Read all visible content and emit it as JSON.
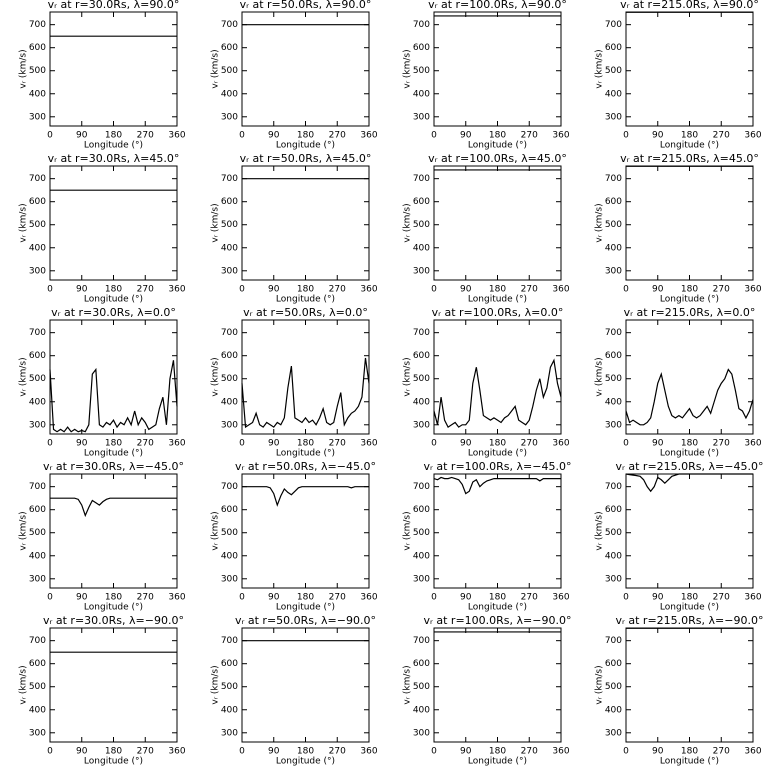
{
  "chart_data": [
    {
      "type": "line",
      "title": "vᵣ at r=30.0Rs, λ=90.0°",
      "xlabel": "Longitude (°)",
      "ylabel": "vᵣ (km/s)",
      "x": [
        0,
        360
      ],
      "values": [
        650,
        650
      ],
      "color": "#000000",
      "xlim": [
        0,
        360
      ],
      "xticks": [
        0,
        90,
        180,
        270,
        360
      ],
      "ylim": [
        260,
        755
      ],
      "yticks": [
        300,
        400,
        500,
        600,
        700
      ]
    },
    {
      "type": "line",
      "title": "vᵣ at r=50.0Rs, λ=90.0°",
      "xlabel": "Longitude (°)",
      "ylabel": "vᵣ (km/s)",
      "x": [
        0,
        360
      ],
      "values": [
        700,
        700
      ],
      "color": "#000000",
      "xlim": [
        0,
        360
      ],
      "xticks": [
        0,
        90,
        180,
        270,
        360
      ],
      "ylim": [
        260,
        755
      ],
      "yticks": [
        300,
        400,
        500,
        600,
        700
      ]
    },
    {
      "type": "line",
      "title": "vᵣ at r=100.0Rs, λ=90.0°",
      "xlabel": "Longitude (°)",
      "ylabel": "vᵣ (km/s)",
      "x": [
        0,
        360
      ],
      "values": [
        738,
        738
      ],
      "color": "#000000",
      "xlim": [
        0,
        360
      ],
      "xticks": [
        0,
        90,
        180,
        270,
        360
      ],
      "ylim": [
        260,
        755
      ],
      "yticks": [
        300,
        400,
        500,
        600,
        700
      ]
    },
    {
      "type": "line",
      "title": "vᵣ at r=215.0Rs, λ=90.0°",
      "xlabel": "Longitude (°)",
      "ylabel": "vᵣ (km/s)",
      "x": [
        0,
        360
      ],
      "values": [
        754,
        754
      ],
      "color": "#000000",
      "xlim": [
        0,
        360
      ],
      "xticks": [
        0,
        90,
        180,
        270,
        360
      ],
      "ylim": [
        260,
        755
      ],
      "yticks": [
        300,
        400,
        500,
        600,
        700
      ]
    },
    {
      "type": "line",
      "title": "vᵣ at r=30.0Rs, λ=45.0°",
      "xlabel": "Longitude (°)",
      "ylabel": "vᵣ (km/s)",
      "x": [
        0,
        360
      ],
      "values": [
        650,
        650
      ],
      "color": "#000000",
      "xlim": [
        0,
        360
      ],
      "xticks": [
        0,
        90,
        180,
        270,
        360
      ],
      "ylim": [
        260,
        755
      ],
      "yticks": [
        300,
        400,
        500,
        600,
        700
      ]
    },
    {
      "type": "line",
      "title": "vᵣ at r=50.0Rs, λ=45.0°",
      "xlabel": "Longitude (°)",
      "ylabel": "vᵣ (km/s)",
      "x": [
        0,
        360
      ],
      "values": [
        700,
        700
      ],
      "color": "#000000",
      "xlim": [
        0,
        360
      ],
      "xticks": [
        0,
        90,
        180,
        270,
        360
      ],
      "ylim": [
        260,
        755
      ],
      "yticks": [
        300,
        400,
        500,
        600,
        700
      ]
    },
    {
      "type": "line",
      "title": "vᵣ at r=100.0Rs, λ=45.0°",
      "xlabel": "Longitude (°)",
      "ylabel": "vᵣ (km/s)",
      "x": [
        0,
        360
      ],
      "values": [
        738,
        738
      ],
      "color": "#000000",
      "xlim": [
        0,
        360
      ],
      "xticks": [
        0,
        90,
        180,
        270,
        360
      ],
      "ylim": [
        260,
        755
      ],
      "yticks": [
        300,
        400,
        500,
        600,
        700
      ]
    },
    {
      "type": "line",
      "title": "vᵣ at r=215.0Rs, λ=45.0°",
      "xlabel": "Longitude (°)",
      "ylabel": "vᵣ (km/s)",
      "x": [
        0,
        360
      ],
      "values": [
        754,
        754
      ],
      "color": "#000000",
      "xlim": [
        0,
        360
      ],
      "xticks": [
        0,
        90,
        180,
        270,
        360
      ],
      "ylim": [
        260,
        755
      ],
      "yticks": [
        300,
        400,
        500,
        600,
        700
      ]
    },
    {
      "type": "line",
      "title": "vᵣ at r=30.0Rs, λ=0.0°",
      "xlabel": "Longitude (°)",
      "ylabel": "vᵣ (km/s)",
      "x": [
        0,
        10,
        20,
        30,
        40,
        50,
        60,
        70,
        80,
        90,
        100,
        110,
        120,
        130,
        140,
        150,
        160,
        170,
        180,
        190,
        200,
        210,
        220,
        230,
        240,
        250,
        260,
        270,
        280,
        290,
        300,
        310,
        320,
        330,
        340,
        350,
        360
      ],
      "values": [
        540,
        280,
        270,
        280,
        270,
        290,
        270,
        280,
        270,
        275,
        270,
        300,
        520,
        540,
        300,
        290,
        310,
        300,
        320,
        290,
        310,
        300,
        330,
        300,
        360,
        300,
        330,
        310,
        280,
        290,
        300,
        370,
        420,
        300,
        500,
        580,
        380
      ],
      "color": "#000000",
      "xlim": [
        0,
        360
      ],
      "xticks": [
        0,
        90,
        180,
        270,
        360
      ],
      "ylim": [
        260,
        755
      ],
      "yticks": [
        300,
        400,
        500,
        600,
        700
      ]
    },
    {
      "type": "line",
      "title": "vᵣ at r=50.0Rs, λ=0.0°",
      "xlabel": "Longitude (°)",
      "ylabel": "vᵣ (km/s)",
      "x": [
        0,
        10,
        20,
        30,
        40,
        50,
        60,
        70,
        80,
        90,
        100,
        110,
        120,
        130,
        140,
        150,
        160,
        170,
        180,
        190,
        200,
        210,
        220,
        230,
        240,
        250,
        260,
        270,
        280,
        290,
        300,
        310,
        320,
        330,
        340,
        350,
        360
      ],
      "values": [
        480,
        290,
        300,
        310,
        350,
        300,
        290,
        310,
        300,
        290,
        310,
        300,
        330,
        460,
        555,
        330,
        320,
        310,
        330,
        310,
        320,
        300,
        330,
        370,
        310,
        300,
        310,
        380,
        440,
        300,
        330,
        350,
        360,
        380,
        420,
        590,
        480
      ],
      "color": "#000000",
      "xlim": [
        0,
        360
      ],
      "xticks": [
        0,
        90,
        180,
        270,
        360
      ],
      "ylim": [
        260,
        755
      ],
      "yticks": [
        300,
        400,
        500,
        600,
        700
      ]
    },
    {
      "type": "line",
      "title": "vᵣ at r=100.0Rs, λ=0.0°",
      "xlabel": "Longitude (°)",
      "ylabel": "vᵣ (km/s)",
      "x": [
        0,
        10,
        20,
        30,
        40,
        50,
        60,
        70,
        80,
        90,
        100,
        110,
        120,
        130,
        140,
        150,
        160,
        170,
        180,
        190,
        200,
        210,
        220,
        230,
        240,
        250,
        260,
        270,
        280,
        290,
        300,
        310,
        320,
        330,
        340,
        350,
        360
      ],
      "values": [
        360,
        300,
        420,
        320,
        290,
        300,
        310,
        290,
        300,
        300,
        320,
        480,
        550,
        450,
        340,
        330,
        320,
        330,
        320,
        310,
        330,
        340,
        360,
        380,
        320,
        310,
        300,
        320,
        380,
        450,
        500,
        420,
        460,
        550,
        580,
        480,
        420
      ],
      "color": "#000000",
      "xlim": [
        0,
        360
      ],
      "xticks": [
        0,
        90,
        180,
        270,
        360
      ],
      "ylim": [
        260,
        755
      ],
      "yticks": [
        300,
        400,
        500,
        600,
        700
      ]
    },
    {
      "type": "line",
      "title": "vᵣ at r=215.0Rs, λ=0.0°",
      "xlabel": "Longitude (°)",
      "ylabel": "vᵣ (km/s)",
      "x": [
        0,
        10,
        20,
        30,
        40,
        50,
        60,
        70,
        80,
        90,
        100,
        110,
        120,
        130,
        140,
        150,
        160,
        170,
        180,
        190,
        200,
        210,
        220,
        230,
        240,
        250,
        260,
        270,
        280,
        290,
        300,
        310,
        320,
        330,
        340,
        350,
        360
      ],
      "values": [
        360,
        310,
        320,
        310,
        300,
        300,
        310,
        330,
        400,
        480,
        520,
        450,
        380,
        340,
        330,
        340,
        330,
        350,
        370,
        340,
        330,
        340,
        360,
        380,
        350,
        400,
        450,
        480,
        500,
        540,
        520,
        450,
        370,
        360,
        330,
        360,
        410
      ],
      "color": "#000000",
      "xlim": [
        0,
        360
      ],
      "xticks": [
        0,
        90,
        180,
        270,
        360
      ],
      "ylim": [
        260,
        755
      ],
      "yticks": [
        300,
        400,
        500,
        600,
        700
      ]
    },
    {
      "type": "line",
      "title": "vᵣ at r=30.0Rs, λ=−45.0°",
      "xlabel": "Longitude (°)",
      "ylabel": "vᵣ (km/s)",
      "x": [
        0,
        10,
        20,
        30,
        40,
        50,
        60,
        70,
        80,
        90,
        100,
        110,
        120,
        130,
        140,
        150,
        160,
        170,
        180,
        190,
        200,
        210,
        220,
        230,
        240,
        250,
        260,
        270,
        280,
        290,
        300,
        310,
        320,
        330,
        340,
        350,
        360
      ],
      "values": [
        650,
        650,
        650,
        650,
        650,
        650,
        650,
        650,
        645,
        620,
        575,
        610,
        640,
        630,
        620,
        635,
        645,
        650,
        650,
        650,
        650,
        650,
        650,
        650,
        650,
        650,
        650,
        650,
        650,
        650,
        650,
        650,
        650,
        650,
        650,
        650,
        650
      ],
      "color": "#000000",
      "xlim": [
        0,
        360
      ],
      "xticks": [
        0,
        90,
        180,
        270,
        360
      ],
      "ylim": [
        260,
        755
      ],
      "yticks": [
        300,
        400,
        500,
        600,
        700
      ]
    },
    {
      "type": "line",
      "title": "vᵣ at r=50.0Rs, λ=−45.0°",
      "xlabel": "Longitude (°)",
      "ylabel": "vᵣ (km/s)",
      "x": [
        0,
        10,
        20,
        30,
        40,
        50,
        60,
        70,
        80,
        90,
        100,
        110,
        120,
        130,
        140,
        150,
        160,
        170,
        180,
        190,
        200,
        210,
        220,
        230,
        240,
        250,
        260,
        270,
        280,
        290,
        300,
        310,
        320,
        330,
        340,
        350,
        360
      ],
      "values": [
        700,
        700,
        700,
        700,
        700,
        700,
        700,
        700,
        695,
        670,
        620,
        660,
        690,
        675,
        665,
        680,
        695,
        700,
        700,
        700,
        700,
        700,
        700,
        700,
        700,
        700,
        700,
        700,
        700,
        700,
        700,
        695,
        700,
        700,
        700,
        700,
        700
      ],
      "color": "#000000",
      "xlim": [
        0,
        360
      ],
      "xticks": [
        0,
        90,
        180,
        270,
        360
      ],
      "ylim": [
        260,
        755
      ],
      "yticks": [
        300,
        400,
        500,
        600,
        700
      ]
    },
    {
      "type": "line",
      "title": "vᵣ at r=100.0Rs, λ=−45.0°",
      "xlabel": "Longitude (°)",
      "ylabel": "vᵣ (km/s)",
      "x": [
        0,
        10,
        20,
        30,
        40,
        50,
        60,
        70,
        80,
        90,
        100,
        110,
        120,
        130,
        140,
        150,
        160,
        170,
        180,
        190,
        200,
        210,
        220,
        230,
        240,
        250,
        260,
        270,
        280,
        290,
        300,
        310,
        320,
        330,
        340,
        350,
        360
      ],
      "values": [
        735,
        730,
        740,
        735,
        735,
        740,
        735,
        730,
        710,
        670,
        680,
        720,
        730,
        700,
        715,
        725,
        730,
        735,
        735,
        735,
        735,
        735,
        735,
        735,
        735,
        735,
        735,
        735,
        735,
        735,
        725,
        735,
        735,
        735,
        735,
        735,
        735
      ],
      "color": "#000000",
      "xlim": [
        0,
        360
      ],
      "xticks": [
        0,
        90,
        180,
        270,
        360
      ],
      "ylim": [
        260,
        755
      ],
      "yticks": [
        300,
        400,
        500,
        600,
        700
      ]
    },
    {
      "type": "line",
      "title": "vᵣ at r=215.0Rs, λ=−45.0°",
      "xlabel": "Longitude (°)",
      "ylabel": "vᵣ (km/s)",
      "x": [
        0,
        10,
        20,
        30,
        40,
        50,
        60,
        70,
        80,
        90,
        100,
        110,
        120,
        130,
        140,
        150,
        160,
        170,
        180,
        190,
        200,
        210,
        220,
        230,
        240,
        250,
        260,
        270,
        280,
        290,
        300,
        310,
        320,
        330,
        340,
        350,
        360
      ],
      "values": [
        755,
        752,
        750,
        748,
        745,
        730,
        700,
        680,
        700,
        740,
        730,
        715,
        730,
        745,
        750,
        755,
        755,
        755,
        755,
        755,
        755,
        755,
        755,
        755,
        755,
        755,
        755,
        755,
        755,
        755,
        755,
        755,
        755,
        755,
        755,
        755,
        755
      ],
      "color": "#000000",
      "xlim": [
        0,
        360
      ],
      "xticks": [
        0,
        90,
        180,
        270,
        360
      ],
      "ylim": [
        260,
        755
      ],
      "yticks": [
        300,
        400,
        500,
        600,
        700
      ]
    },
    {
      "type": "line",
      "title": "vᵣ at r=30.0Rs, λ=−90.0°",
      "xlabel": "Longitude (°)",
      "ylabel": "vᵣ (km/s)",
      "x": [
        0,
        360
      ],
      "values": [
        650,
        650
      ],
      "color": "#000000",
      "xlim": [
        0,
        360
      ],
      "xticks": [
        0,
        90,
        180,
        270,
        360
      ],
      "ylim": [
        260,
        755
      ],
      "yticks": [
        300,
        400,
        500,
        600,
        700
      ]
    },
    {
      "type": "line",
      "title": "vᵣ at r=50.0Rs, λ=−90.0°",
      "xlabel": "Longitude (°)",
      "ylabel": "vᵣ (km/s)",
      "x": [
        0,
        360
      ],
      "values": [
        700,
        700
      ],
      "color": "#000000",
      "xlim": [
        0,
        360
      ],
      "xticks": [
        0,
        90,
        180,
        270,
        360
      ],
      "ylim": [
        260,
        755
      ],
      "yticks": [
        300,
        400,
        500,
        600,
        700
      ]
    },
    {
      "type": "line",
      "title": "vᵣ at r=100.0Rs, λ=−90.0°",
      "xlabel": "Longitude (°)",
      "ylabel": "vᵣ (km/s)",
      "x": [
        0,
        360
      ],
      "values": [
        738,
        738
      ],
      "color": "#000000",
      "xlim": [
        0,
        360
      ],
      "xticks": [
        0,
        90,
        180,
        270,
        360
      ],
      "ylim": [
        260,
        755
      ],
      "yticks": [
        300,
        400,
        500,
        600,
        700
      ]
    },
    {
      "type": "line",
      "title": "vᵣ at r=215.0Rs, λ=−90.0°",
      "xlabel": "Longitude (°)",
      "ylabel": "vᵣ (km/s)",
      "x": [
        0,
        360
      ],
      "values": [
        754,
        754
      ],
      "color": "#000000",
      "xlim": [
        0,
        360
      ],
      "xticks": [
        0,
        90,
        180,
        270,
        360
      ],
      "ylim": [
        260,
        755
      ],
      "yticks": [
        300,
        400,
        500,
        600,
        700
      ]
    }
  ]
}
